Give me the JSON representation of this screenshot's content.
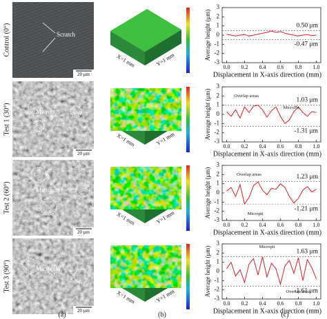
{
  "rows": [
    {
      "label": "Control (0°)",
      "sem": {
        "annotation": "Scratch",
        "scale_bar": "20 μm"
      },
      "surface": {
        "x_label": "X=1 mm",
        "y_label": "Y=1 mm"
      },
      "chart": {
        "type": "line",
        "color": "#e0202a",
        "x_label": "Displacement in X-axis direction (mm)",
        "y_label": "Average height (μm)",
        "x": [
          0,
          0.05,
          0.1,
          0.15,
          0.2,
          0.25,
          0.3,
          0.35,
          0.4,
          0.45,
          0.5,
          0.55,
          0.6,
          0.65,
          0.7,
          0.75,
          0.8,
          0.85,
          0.9,
          0.95,
          1
        ],
        "values": [
          0.1,
          0,
          -0.1,
          0,
          0.05,
          -0.1,
          0,
          0.1,
          0.2,
          0.3,
          0.45,
          0.3,
          0.4,
          0.2,
          0.1,
          0,
          -0.1,
          0,
          0.05,
          -0.05,
          0
        ],
        "xlim": [
          -0.05,
          1.05
        ],
        "ylim": [
          -3,
          3
        ],
        "yticks": [
          -3,
          -2,
          -1,
          0,
          1,
          2,
          3
        ],
        "xticks": [
          {
            "value": 0,
            "label": "0.0"
          },
          0.2,
          0.4,
          0.6,
          0.8,
          {
            "value": 1,
            "label": "1.0"
          }
        ],
        "upper": {
          "value": 0.5,
          "label": "0.50 μm"
        },
        "lower": {
          "value": -0.47,
          "label": "-0.47 μm"
        },
        "annotations": []
      }
    },
    {
      "label": "Test 1 (30°)",
      "sem": {
        "annotation": "Micropits",
        "scale_bar": "20 μm"
      },
      "surface": {
        "x_label": "X=1 mm",
        "y_label": "Y=1 mm"
      },
      "chart": {
        "type": "line",
        "color": "#e0202a",
        "x_label": "Displacement in X-axis direction (mm)",
        "y_label": "Average height (μm)",
        "x": [
          0,
          0.05,
          0.1,
          0.15,
          0.2,
          0.25,
          0.3,
          0.35,
          0.4,
          0.45,
          0.5,
          0.55,
          0.6,
          0.65,
          0.7,
          0.75,
          0.8,
          0.85,
          0.9,
          0.95,
          1
        ],
        "values": [
          0.3,
          -0.2,
          0.5,
          -0.4,
          0.8,
          0.2,
          0.9,
          1.0,
          0.5,
          -0.3,
          0.4,
          0.8,
          -0.2,
          -1.0,
          -0.6,
          0.3,
          0.8,
          0.2,
          -0.2,
          0.3,
          0.2
        ],
        "xlim": [
          -0.05,
          1.05
        ],
        "ylim": [
          -3,
          3
        ],
        "yticks": [
          -3,
          -2,
          -1,
          0,
          1,
          2,
          3
        ],
        "xticks": [
          {
            "value": 0,
            "label": "0.0"
          },
          0.2,
          0.4,
          0.6,
          0.8,
          {
            "value": 1,
            "label": "1.0"
          }
        ],
        "upper": {
          "value": 1.03,
          "label": "1.03 μm"
        },
        "lower": {
          "value": -1.31,
          "label": "-1.31 μm"
        },
        "annotations": [
          "Overlap areas",
          "MicroPit"
        ]
      }
    },
    {
      "label": "Test 2 (60°)",
      "sem": {
        "annotation": "Micropits",
        "scale_bar": "20 μm"
      },
      "surface": {
        "x_label": "X=1 mm",
        "y_label": "Y=1 mm"
      },
      "chart": {
        "type": "line",
        "color": "#e0202a",
        "x_label": "Displacement in X-axis direction (mm)",
        "y_label": "Average height (μm)",
        "x": [
          0,
          0.05,
          0.1,
          0.15,
          0.2,
          0.25,
          0.3,
          0.35,
          0.4,
          0.45,
          0.5,
          0.55,
          0.6,
          0.65,
          0.7,
          0.75,
          0.8,
          0.85,
          0.9,
          0.95,
          1
        ],
        "values": [
          0.2,
          0.6,
          -0.4,
          0.9,
          -1.2,
          -0.5,
          0.8,
          1.2,
          0.3,
          -0.2,
          0.5,
          0.4,
          1.0,
          0.6,
          -0.4,
          -1.1,
          -0.6,
          0.3,
          0.7,
          0.1,
          0.4
        ],
        "xlim": [
          -0.05,
          1.05
        ],
        "ylim": [
          -3,
          3
        ],
        "yticks": [
          -3,
          -2,
          -1,
          0,
          1,
          2,
          3
        ],
        "xticks": [
          {
            "value": 0,
            "label": "0.0"
          },
          0.2,
          0.4,
          0.6,
          0.8,
          {
            "value": 1,
            "label": "1.0"
          }
        ],
        "upper": {
          "value": 1.23,
          "label": "1.23 μm"
        },
        "lower": {
          "value": -1.21,
          "label": "-1.21 μm"
        },
        "annotations": [
          "Overlap areas",
          "Micropit"
        ]
      }
    },
    {
      "label": "Test 3 (90°)",
      "sem": {
        "annotation": "Micropits",
        "scale_bar": "20 μm"
      },
      "surface": {
        "x_label": "X=1 mm",
        "y_label": "Y=1 mm"
      },
      "chart": {
        "type": "line",
        "color": "#e0202a",
        "x_label": "Displacement in X-axis direction (mm)",
        "y_label": "Average height (μm)",
        "x": [
          0,
          0.05,
          0.1,
          0.15,
          0.2,
          0.25,
          0.3,
          0.35,
          0.4,
          0.45,
          0.5,
          0.55,
          0.6,
          0.65,
          0.7,
          0.75,
          0.8,
          0.85,
          0.9,
          0.95,
          1
        ],
        "values": [
          0.3,
          1.0,
          -0.5,
          0.2,
          -1.2,
          0.8,
          1.4,
          -0.4,
          1.6,
          -0.6,
          0.9,
          0.3,
          -1.4,
          0.6,
          1.2,
          -0.2,
          1.5,
          -1.0,
          1.3,
          0.4,
          -0.8
        ],
        "xlim": [
          -0.05,
          1.05
        ],
        "ylim": [
          -3,
          3
        ],
        "yticks": [
          -3,
          -2,
          -1,
          0,
          1,
          2,
          3
        ],
        "xticks": [
          {
            "value": 0,
            "label": "0.0"
          },
          0.2,
          0.4,
          0.6,
          0.8,
          {
            "value": 1,
            "label": "1.0"
          }
        ],
        "upper": {
          "value": 1.63,
          "label": "1.63 μm"
        },
        "lower": {
          "value": -1.61,
          "label": "-1.61 μm"
        },
        "annotations": [
          "Micropit",
          "Overlap areas"
        ]
      }
    }
  ],
  "panel_labels": [
    "(a)",
    "(b)",
    "(c)"
  ]
}
